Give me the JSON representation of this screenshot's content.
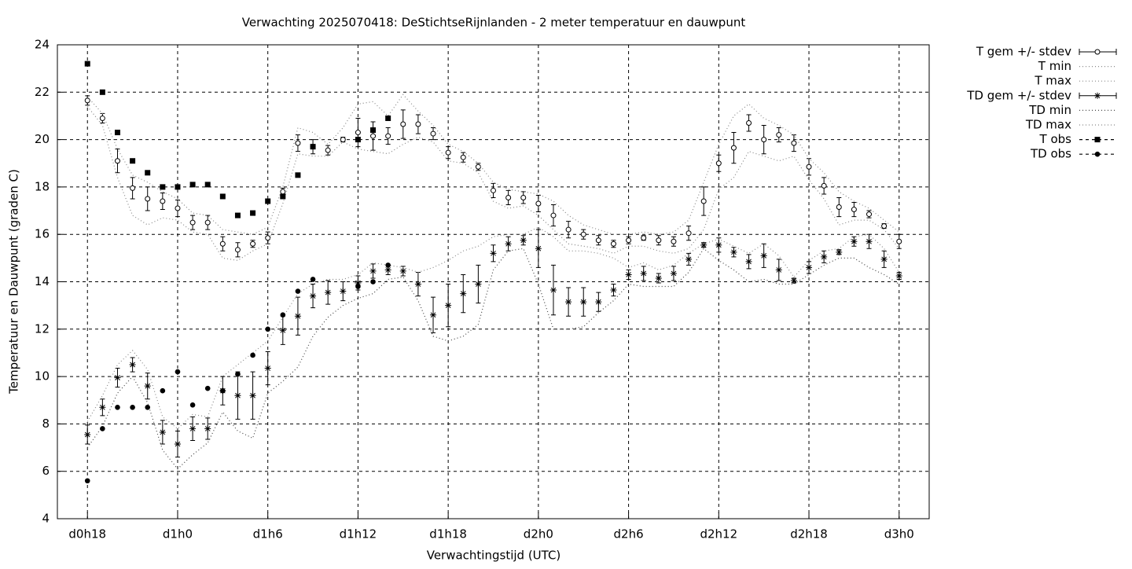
{
  "chart_data": {
    "type": "line",
    "title": "Verwachting 2025070418: DeStichtseRijnlanden - 2 meter temperatuur en dauwpunt",
    "xlabel": "Verwachtingstijd (UTC)",
    "ylabel": "Temperatuur en Dauwpunt (graden C)",
    "xlim": [
      16,
      74
    ],
    "ylim": [
      4,
      24
    ],
    "xticks": [
      {
        "value": 18,
        "label": "d0h18"
      },
      {
        "value": 24,
        "label": "d1h0"
      },
      {
        "value": 30,
        "label": "d1h6"
      },
      {
        "value": 36,
        "label": "d1h12"
      },
      {
        "value": 42,
        "label": "d1h18"
      },
      {
        "value": 48,
        "label": "d2h0"
      },
      {
        "value": 54,
        "label": "d2h6"
      },
      {
        "value": 60,
        "label": "d2h12"
      },
      {
        "value": 66,
        "label": "d2h18"
      },
      {
        "value": 72,
        "label": "d3h0"
      }
    ],
    "yticks": [
      4,
      6,
      8,
      10,
      12,
      14,
      16,
      18,
      20,
      22,
      24
    ],
    "grid": true,
    "legend": "outside-top-right",
    "x": [
      18,
      19,
      20,
      21,
      22,
      23,
      24,
      25,
      26,
      27,
      28,
      29,
      30,
      31,
      32,
      33,
      34,
      35,
      36,
      37,
      38,
      39,
      40,
      41,
      42,
      43,
      44,
      45,
      46,
      47,
      48,
      49,
      50,
      51,
      52,
      53,
      54,
      55,
      56,
      57,
      58,
      59,
      60,
      61,
      62,
      63,
      64,
      65,
      66,
      67,
      68,
      69,
      70,
      71,
      72
    ],
    "series": [
      {
        "name": "T gem +/- stdev",
        "color": "#000000",
        "style": "errorbars",
        "marker": "open-circle",
        "values": [
          21.65,
          20.9,
          19.1,
          17.95,
          17.5,
          17.4,
          17.1,
          16.5,
          16.5,
          15.6,
          15.35,
          15.6,
          15.85,
          17.8,
          19.85,
          19.7,
          19.55,
          20.0,
          20.3,
          20.15,
          20.15,
          20.65,
          20.65,
          20.25,
          19.45,
          19.25,
          18.85,
          17.85,
          17.55,
          17.55,
          17.3,
          16.8,
          16.2,
          16.0,
          15.75,
          15.6,
          15.75,
          15.85,
          15.75,
          15.7,
          16.05,
          17.4,
          19.0,
          19.65,
          20.7,
          20.0,
          20.2,
          19.85,
          18.85,
          18.05,
          17.15,
          17.05,
          16.85,
          16.35,
          15.7
        ],
        "errors": [
          0.2,
          0.2,
          0.5,
          0.45,
          0.5,
          0.35,
          0.35,
          0.3,
          0.3,
          0.3,
          0.3,
          0.15,
          0.25,
          0.15,
          0.35,
          0.3,
          0.2,
          0.1,
          0.6,
          0.6,
          0.35,
          0.6,
          0.4,
          0.25,
          0.25,
          0.2,
          0.15,
          0.3,
          0.3,
          0.25,
          0.35,
          0.45,
          0.35,
          0.2,
          0.2,
          0.15,
          0.15,
          0.1,
          0.2,
          0.2,
          0.3,
          0.6,
          0.35,
          0.65,
          0.35,
          0.6,
          0.3,
          0.35,
          0.35,
          0.35,
          0.4,
          0.3,
          0.15,
          0.1,
          0.3
        ]
      },
      {
        "name": "T min",
        "color": "#888888",
        "style": "dotted",
        "values": [
          21.4,
          20.6,
          18.4,
          16.8,
          16.4,
          16.7,
          16.6,
          16.1,
          16.0,
          15.0,
          14.9,
          15.3,
          15.6,
          17.3,
          19.4,
          19.3,
          19.3,
          19.9,
          19.6,
          19.5,
          19.4,
          19.8,
          20.1,
          19.9,
          19.1,
          19.0,
          18.6,
          17.4,
          17.1,
          17.2,
          16.8,
          16.2,
          15.6,
          15.5,
          15.4,
          15.2,
          15.5,
          15.5,
          15.3,
          15.2,
          15.4,
          16.2,
          17.9,
          18.4,
          19.5,
          19.3,
          19.1,
          19.3,
          18.3,
          17.5,
          16.4,
          16.6,
          16.6,
          16.2,
          15.4
        ]
      },
      {
        "name": "T max",
        "color": "#888888",
        "style": "dotted",
        "values": [
          21.8,
          21.1,
          19.6,
          18.5,
          18.2,
          17.8,
          17.5,
          16.9,
          16.8,
          16.2,
          16.1,
          16.0,
          16.3,
          18.0,
          20.5,
          20.3,
          19.8,
          20.5,
          21.5,
          21.6,
          21.0,
          21.9,
          21.2,
          20.6,
          19.8,
          19.5,
          19.0,
          18.2,
          17.9,
          17.8,
          17.7,
          17.4,
          16.8,
          16.4,
          16.2,
          16.0,
          16.0,
          16.1,
          16.0,
          16.1,
          16.6,
          18.2,
          19.8,
          21.0,
          21.5,
          20.9,
          20.6,
          20.2,
          19.2,
          18.6,
          17.8,
          17.4,
          17.1,
          16.6,
          16.1
        ]
      },
      {
        "name": "TD gem +/- stdev",
        "color": "#000000",
        "style": "errorbars",
        "marker": "star",
        "values": [
          7.55,
          8.7,
          9.95,
          10.5,
          9.6,
          7.65,
          7.15,
          7.8,
          7.8,
          9.4,
          9.2,
          9.2,
          10.35,
          11.95,
          12.55,
          13.4,
          13.55,
          13.6,
          13.95,
          14.45,
          14.5,
          14.45,
          13.9,
          12.6,
          13.0,
          13.5,
          13.9,
          15.2,
          15.6,
          15.75,
          15.4,
          13.65,
          13.15,
          13.15,
          13.15,
          13.65,
          14.3,
          14.35,
          14.15,
          14.35,
          14.95,
          15.55,
          15.55,
          15.25,
          14.85,
          15.1,
          14.5,
          14.05,
          14.6,
          15.05,
          15.25,
          15.7,
          15.7,
          14.95,
          14.25
        ],
        "errors": [
          0.4,
          0.35,
          0.4,
          0.3,
          0.55,
          0.5,
          0.55,
          0.5,
          0.45,
          0.6,
          1.0,
          1.0,
          0.7,
          0.6,
          0.8,
          0.5,
          0.5,
          0.4,
          0.3,
          0.3,
          0.2,
          0.2,
          0.5,
          0.75,
          0.9,
          0.8,
          0.8,
          0.35,
          0.3,
          0.2,
          0.8,
          1.05,
          0.6,
          0.6,
          0.4,
          0.25,
          0.2,
          0.3,
          0.2,
          0.3,
          0.25,
          0.1,
          0.3,
          0.2,
          0.3,
          0.5,
          0.45,
          0.1,
          0.25,
          0.25,
          0.1,
          0.2,
          0.3,
          0.35,
          0.15
        ]
      },
      {
        "name": "TD min",
        "color": "#444444",
        "style": "dotted",
        "values": [
          7.0,
          7.9,
          9.3,
          10.0,
          8.9,
          6.9,
          6.1,
          6.7,
          7.2,
          8.5,
          7.7,
          7.4,
          9.3,
          9.8,
          10.4,
          11.7,
          12.5,
          13.0,
          13.3,
          13.5,
          14.1,
          14.2,
          13.2,
          11.7,
          11.5,
          11.7,
          12.2,
          14.5,
          15.3,
          15.4,
          13.9,
          12.0,
          12.0,
          12.1,
          12.7,
          13.2,
          13.9,
          13.8,
          13.8,
          13.8,
          14.4,
          15.4,
          14.9,
          14.5,
          14.0,
          14.1,
          13.9,
          13.9,
          14.3,
          14.7,
          15.0,
          15.0,
          14.6,
          14.3,
          13.9
        ]
      },
      {
        "name": "TD max",
        "color": "#888888",
        "style": "dotted",
        "values": [
          8.1,
          9.2,
          10.5,
          11.1,
          10.3,
          8.3,
          7.8,
          8.4,
          8.3,
          10.0,
          10.5,
          11.0,
          11.5,
          12.5,
          13.5,
          13.9,
          14.1,
          14.1,
          14.3,
          14.8,
          14.7,
          14.6,
          14.4,
          14.6,
          14.9,
          15.3,
          15.5,
          15.9,
          16.0,
          16.0,
          16.3,
          15.9,
          15.3,
          15.3,
          15.2,
          15.0,
          14.6,
          14.8,
          14.5,
          14.7,
          15.2,
          15.6,
          15.8,
          15.5,
          15.2,
          15.6,
          15.1,
          14.2,
          14.9,
          15.3,
          15.4,
          15.9,
          16.0,
          15.4,
          14.4
        ]
      },
      {
        "name": "T obs",
        "color": "#000000",
        "style": "points",
        "marker": "filled-square",
        "values": [
          23.2,
          22.0,
          20.3,
          19.1,
          18.6,
          18.0,
          18.0,
          18.1,
          18.1,
          17.6,
          16.8,
          16.9,
          17.4,
          17.6,
          18.5,
          19.7,
          null,
          null,
          20.0,
          20.4,
          20.9,
          null,
          null,
          null,
          null,
          null,
          null,
          null,
          null,
          null,
          null,
          null,
          null,
          null,
          null,
          null,
          null,
          null,
          null,
          null,
          null,
          null,
          null,
          null,
          null,
          null,
          null,
          null,
          null,
          null,
          null,
          null,
          null,
          null,
          null
        ]
      },
      {
        "name": "TD obs",
        "color": "#000000",
        "style": "points",
        "marker": "filled-circle",
        "values": [
          5.6,
          7.8,
          8.7,
          8.7,
          8.7,
          9.4,
          10.2,
          8.8,
          9.5,
          9.4,
          10.1,
          10.9,
          12.0,
          12.6,
          13.6,
          14.1,
          null,
          null,
          13.8,
          14.0,
          14.7,
          null,
          null,
          null,
          null,
          null,
          null,
          null,
          null,
          null,
          null,
          null,
          null,
          null,
          null,
          null,
          null,
          null,
          null,
          null,
          null,
          null,
          null,
          null,
          null,
          null,
          null,
          null,
          null,
          null,
          null,
          null,
          null,
          null,
          null
        ]
      }
    ]
  }
}
